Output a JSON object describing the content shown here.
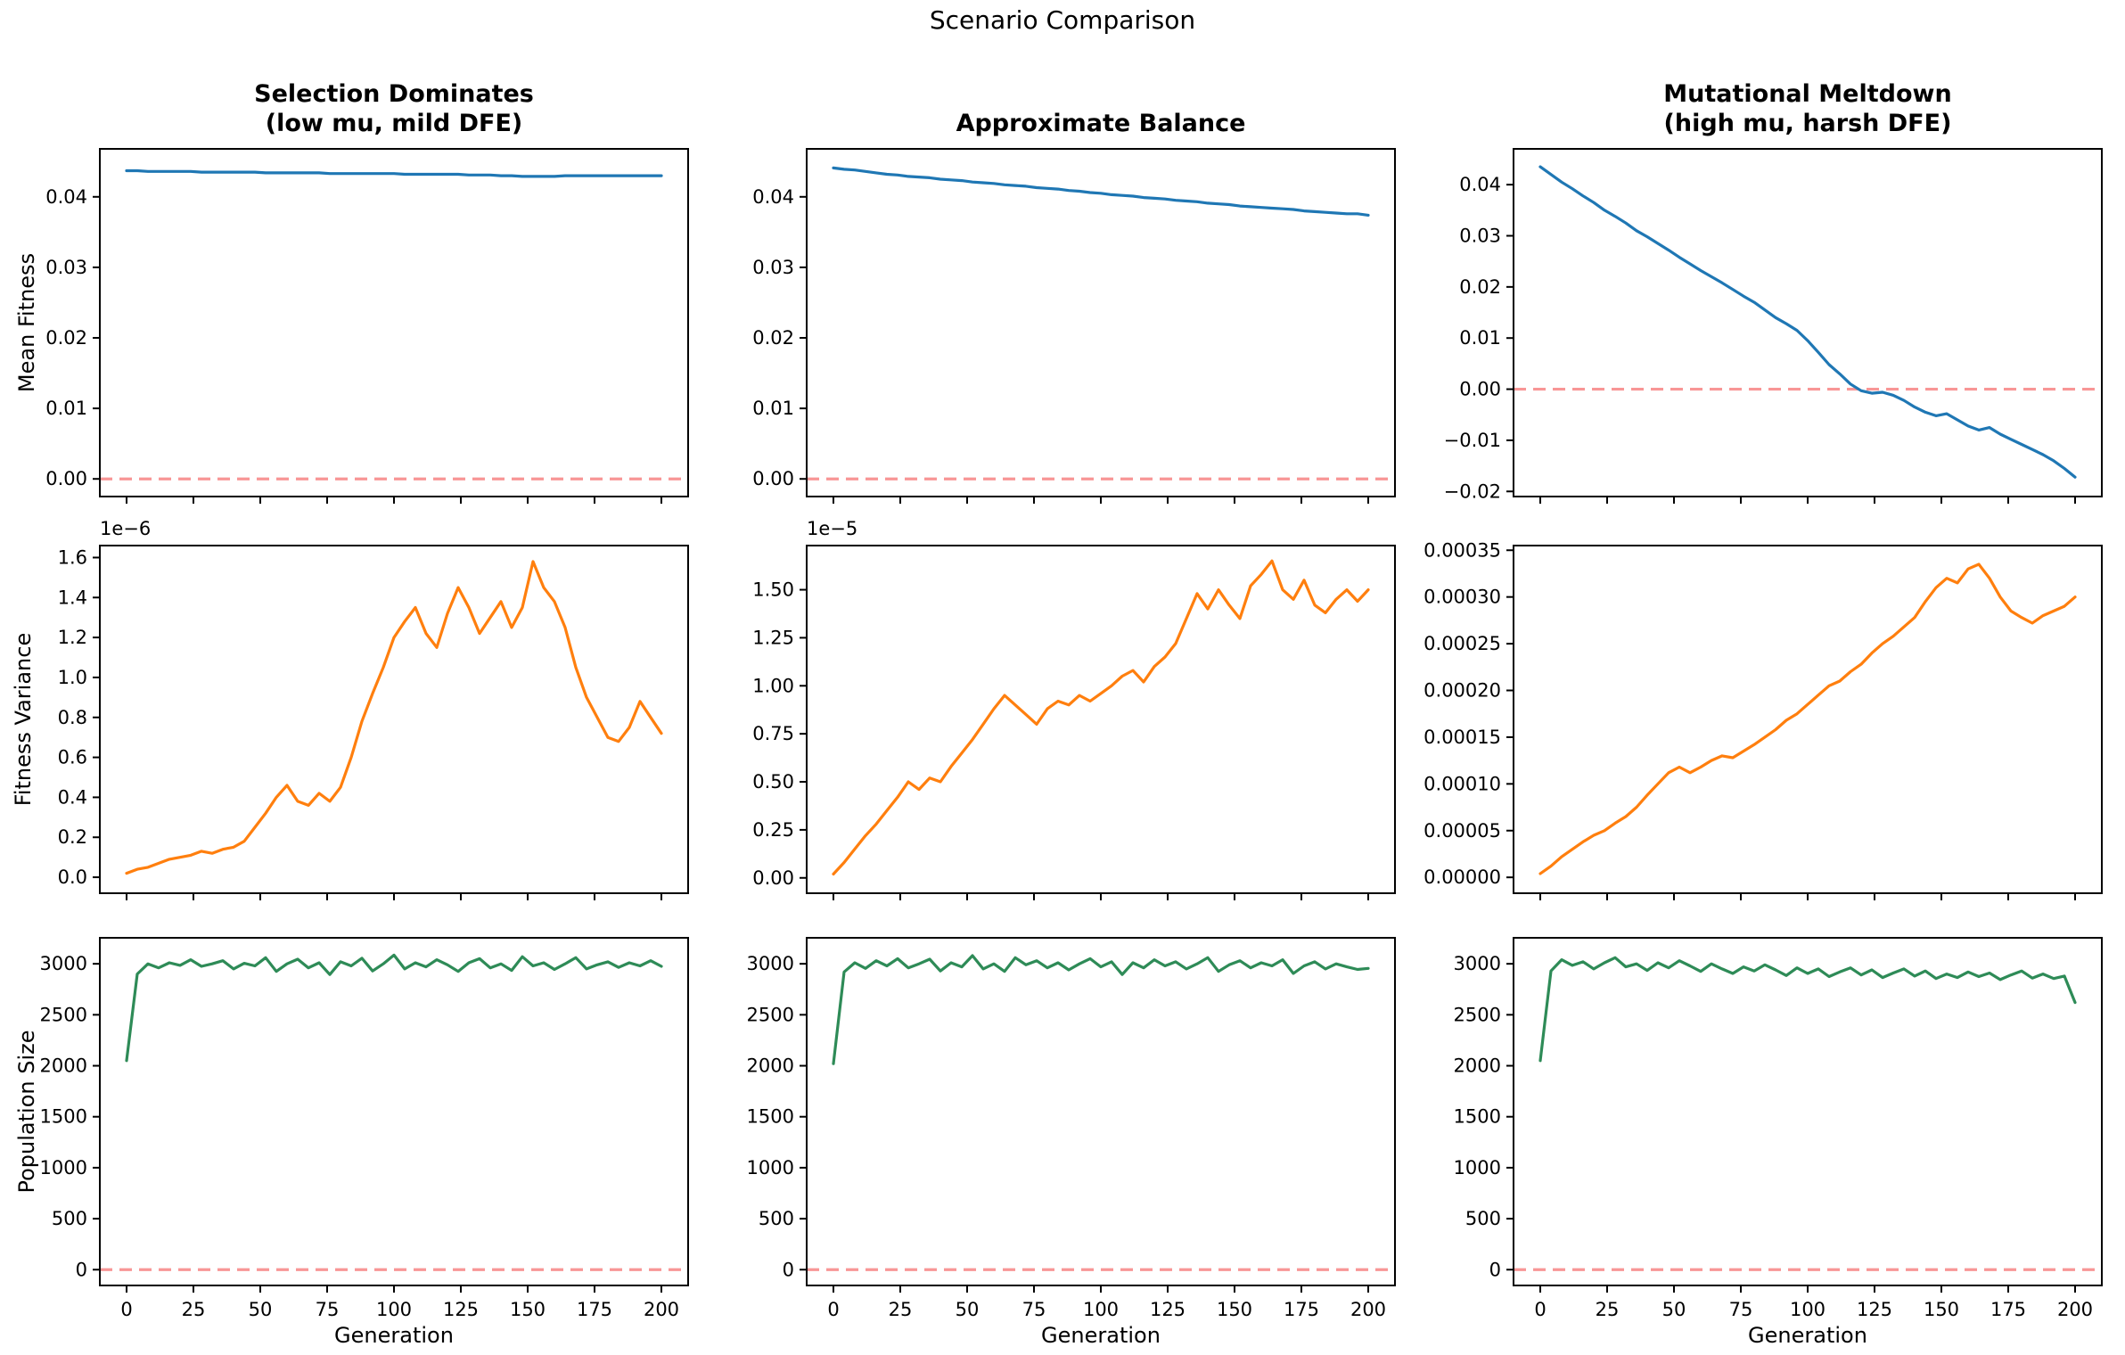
{
  "colors": {
    "blue": "#1f77b4",
    "orange": "#ff7f0e",
    "green": "#2e8b57",
    "zero_line": "#f89696",
    "spine": "#000000",
    "text": "#000000"
  },
  "chart_data": {
    "type": "line",
    "suptitle": "Scenario Comparison",
    "xlabel": "Generation",
    "grid": false,
    "columns": [
      {
        "title": "Selection Dominates\n(low mu, mild DFE)"
      },
      {
        "title": "Approximate Balance"
      },
      {
        "title": "Mutational Meltdown\n(high mu, harsh DFE)"
      }
    ],
    "rows": [
      {
        "ylabel": "Mean Fitness"
      },
      {
        "ylabel": "Fitness Variance"
      },
      {
        "ylabel": "Population Size"
      }
    ],
    "xlim": [
      -10,
      210
    ],
    "xticks": [
      0,
      25,
      50,
      75,
      100,
      125,
      150,
      175,
      200
    ],
    "xtick_labels": [
      "0",
      "25",
      "50",
      "75",
      "100",
      "125",
      "150",
      "175",
      "200"
    ],
    "x": [
      0,
      4,
      8,
      12,
      16,
      20,
      24,
      28,
      32,
      36,
      40,
      44,
      48,
      52,
      56,
      60,
      64,
      68,
      72,
      76,
      80,
      84,
      88,
      92,
      96,
      100,
      104,
      108,
      112,
      116,
      120,
      124,
      128,
      132,
      136,
      140,
      144,
      148,
      152,
      156,
      160,
      164,
      168,
      172,
      176,
      180,
      184,
      188,
      192,
      196,
      200
    ],
    "panels": [
      {
        "id": "r0c0",
        "series_name": "mean-fitness-selection",
        "color": "blue",
        "ylim": [
          -0.0025,
          0.0468
        ],
        "yticks": [
          0.0,
          0.01,
          0.02,
          0.03,
          0.04
        ],
        "ytick_labels": [
          "0.00",
          "0.01",
          "0.02",
          "0.03",
          "0.04"
        ],
        "offset_label": "",
        "zero_line": true,
        "show_xlabels": false,
        "y": [
          0.0437,
          0.0437,
          0.0436,
          0.0436,
          0.0436,
          0.0436,
          0.0436,
          0.0435,
          0.0435,
          0.0435,
          0.0435,
          0.0435,
          0.0435,
          0.0434,
          0.0434,
          0.0434,
          0.0434,
          0.0434,
          0.0434,
          0.0433,
          0.0433,
          0.0433,
          0.0433,
          0.0433,
          0.0433,
          0.0433,
          0.0432,
          0.0432,
          0.0432,
          0.0432,
          0.0432,
          0.0432,
          0.0431,
          0.0431,
          0.0431,
          0.043,
          0.043,
          0.0429,
          0.0429,
          0.0429,
          0.0429,
          0.043,
          0.043,
          0.043,
          0.043,
          0.043,
          0.043,
          0.043,
          0.043,
          0.043,
          0.043
        ]
      },
      {
        "id": "r0c1",
        "series_name": "mean-fitness-balance",
        "color": "blue",
        "ylim": [
          -0.0025,
          0.0468
        ],
        "yticks": [
          0.0,
          0.01,
          0.02,
          0.03,
          0.04
        ],
        "ytick_labels": [
          "0.00",
          "0.01",
          "0.02",
          "0.03",
          "0.04"
        ],
        "offset_label": "",
        "zero_line": true,
        "show_xlabels": false,
        "y": [
          0.0441,
          0.0439,
          0.0438,
          0.0436,
          0.0434,
          0.0432,
          0.0431,
          0.0429,
          0.0428,
          0.0427,
          0.0425,
          0.0424,
          0.0423,
          0.0421,
          0.042,
          0.0419,
          0.0417,
          0.0416,
          0.0415,
          0.0413,
          0.0412,
          0.0411,
          0.0409,
          0.0408,
          0.0406,
          0.0405,
          0.0403,
          0.0402,
          0.0401,
          0.0399,
          0.0398,
          0.0397,
          0.0395,
          0.0394,
          0.0393,
          0.0391,
          0.039,
          0.0389,
          0.0387,
          0.0386,
          0.0385,
          0.0384,
          0.0383,
          0.0382,
          0.038,
          0.0379,
          0.0378,
          0.0377,
          0.0376,
          0.0376,
          0.0374
        ]
      },
      {
        "id": "r0c2",
        "series_name": "mean-fitness-meltdown",
        "color": "blue",
        "ylim": [
          -0.021,
          0.047
        ],
        "yticks": [
          -0.02,
          -0.01,
          0.0,
          0.01,
          0.02,
          0.03,
          0.04
        ],
        "ytick_labels": [
          "−0.02",
          "−0.01",
          "0.00",
          "0.01",
          "0.02",
          "0.03",
          "0.04"
        ],
        "offset_label": "",
        "zero_line": true,
        "show_xlabels": false,
        "y": [
          0.0435,
          0.042,
          0.0405,
          0.0392,
          0.0378,
          0.0365,
          0.035,
          0.0338,
          0.0325,
          0.031,
          0.0298,
          0.0285,
          0.0272,
          0.0258,
          0.0245,
          0.0232,
          0.022,
          0.0208,
          0.0195,
          0.0182,
          0.017,
          0.0155,
          0.014,
          0.0128,
          0.0115,
          0.0095,
          0.0072,
          0.0048,
          0.003,
          0.001,
          -0.0003,
          -0.0008,
          -0.0006,
          -0.0012,
          -0.0022,
          -0.0035,
          -0.0045,
          -0.0052,
          -0.0048,
          -0.006,
          -0.0072,
          -0.008,
          -0.0075,
          -0.0088,
          -0.0098,
          -0.0108,
          -0.0118,
          -0.0128,
          -0.014,
          -0.0155,
          -0.0172
        ]
      },
      {
        "id": "r1c0",
        "series_name": "fitness-variance-selection",
        "color": "orange",
        "ylim": [
          -0.08,
          1.66
        ],
        "yticks": [
          0.0,
          0.2,
          0.4,
          0.6,
          0.8,
          1.0,
          1.2,
          1.4,
          1.6
        ],
        "ytick_labels": [
          "0.0",
          "0.2",
          "0.4",
          "0.6",
          "0.8",
          "1.0",
          "1.2",
          "1.4",
          "1.6"
        ],
        "offset_label": "1e−6",
        "zero_line": false,
        "show_xlabels": false,
        "y": [
          0.02,
          0.04,
          0.05,
          0.07,
          0.09,
          0.1,
          0.11,
          0.13,
          0.12,
          0.14,
          0.15,
          0.18,
          0.25,
          0.32,
          0.4,
          0.46,
          0.38,
          0.36,
          0.42,
          0.38,
          0.45,
          0.6,
          0.78,
          0.92,
          1.05,
          1.2,
          1.28,
          1.35,
          1.22,
          1.15,
          1.32,
          1.45,
          1.35,
          1.22,
          1.3,
          1.38,
          1.25,
          1.35,
          1.58,
          1.45,
          1.38,
          1.25,
          1.05,
          0.9,
          0.8,
          0.7,
          0.68,
          0.75,
          0.88,
          0.8,
          0.72
        ]
      },
      {
        "id": "r1c1",
        "series_name": "fitness-variance-balance",
        "color": "orange",
        "ylim": [
          -0.08,
          1.73
        ],
        "yticks": [
          0.0,
          0.25,
          0.5,
          0.75,
          1.0,
          1.25,
          1.5
        ],
        "ytick_labels": [
          "0.00",
          "0.25",
          "0.50",
          "0.75",
          "1.00",
          "1.25",
          "1.50"
        ],
        "offset_label": "1e−5",
        "zero_line": false,
        "show_xlabels": false,
        "y": [
          0.02,
          0.08,
          0.15,
          0.22,
          0.28,
          0.35,
          0.42,
          0.5,
          0.46,
          0.52,
          0.5,
          0.58,
          0.65,
          0.72,
          0.8,
          0.88,
          0.95,
          0.9,
          0.85,
          0.8,
          0.88,
          0.92,
          0.9,
          0.95,
          0.92,
          0.96,
          1.0,
          1.05,
          1.08,
          1.02,
          1.1,
          1.15,
          1.22,
          1.35,
          1.48,
          1.4,
          1.5,
          1.42,
          1.35,
          1.52,
          1.58,
          1.65,
          1.5,
          1.45,
          1.55,
          1.42,
          1.38,
          1.45,
          1.5,
          1.44,
          1.5
        ]
      },
      {
        "id": "r1c2",
        "series_name": "fitness-variance-meltdown",
        "color": "orange",
        "ylim": [
          -1.7e-05,
          0.000355
        ],
        "yticks": [
          0.0,
          5e-05,
          0.0001,
          0.00015,
          0.0002,
          0.00025,
          0.0003,
          0.00035
        ],
        "ytick_labels": [
          "0.00000",
          "0.00005",
          "0.00010",
          "0.00015",
          "0.00020",
          "0.00025",
          "0.00030",
          "0.00035"
        ],
        "offset_label": "",
        "zero_line": false,
        "show_xlabels": false,
        "y": [
          4e-06,
          1.2e-05,
          2.2e-05,
          3e-05,
          3.8e-05,
          4.5e-05,
          5e-05,
          5.8e-05,
          6.5e-05,
          7.5e-05,
          8.8e-05,
          0.0001,
          0.000112,
          0.000118,
          0.000112,
          0.000118,
          0.000125,
          0.00013,
          0.000128,
          0.000135,
          0.000142,
          0.00015,
          0.000158,
          0.000168,
          0.000175,
          0.000185,
          0.000195,
          0.000205,
          0.00021,
          0.00022,
          0.000228,
          0.00024,
          0.00025,
          0.000258,
          0.000268,
          0.000278,
          0.000295,
          0.00031,
          0.00032,
          0.000315,
          0.00033,
          0.000335,
          0.00032,
          0.0003,
          0.000285,
          0.000278,
          0.000272,
          0.00028,
          0.000285,
          0.00029,
          0.0003
        ]
      },
      {
        "id": "r2c0",
        "series_name": "population-size-selection",
        "color": "green",
        "ylim": [
          -155,
          3255
        ],
        "yticks": [
          0,
          500,
          1000,
          1500,
          2000,
          2500,
          3000
        ],
        "ytick_labels": [
          "0",
          "500",
          "1000",
          "1500",
          "2000",
          "2500",
          "3000"
        ],
        "offset_label": "",
        "zero_line": true,
        "show_xlabels": true,
        "y": [
          2050,
          2900,
          3000,
          2960,
          3010,
          2985,
          3040,
          2975,
          3000,
          3030,
          2950,
          3005,
          2980,
          3060,
          2925,
          3000,
          3045,
          2960,
          3010,
          2895,
          3020,
          2980,
          3055,
          2930,
          3000,
          3085,
          2950,
          3010,
          2970,
          3040,
          2990,
          2925,
          3010,
          3050,
          2960,
          3000,
          2935,
          3070,
          2980,
          3010,
          2945,
          3000,
          3060,
          2950,
          2990,
          3020,
          2965,
          3010,
          2980,
          3030,
          2975
        ]
      },
      {
        "id": "r2c1",
        "series_name": "population-size-balance",
        "color": "green",
        "ylim": [
          -155,
          3255
        ],
        "yticks": [
          0,
          500,
          1000,
          1500,
          2000,
          2500,
          3000
        ],
        "ytick_labels": [
          "0",
          "500",
          "1000",
          "1500",
          "2000",
          "2500",
          "3000"
        ],
        "offset_label": "",
        "zero_line": true,
        "show_xlabels": true,
        "y": [
          2020,
          2920,
          3010,
          2955,
          3030,
          2980,
          3050,
          2960,
          3000,
          3045,
          2930,
          3010,
          2970,
          3080,
          2950,
          3000,
          2925,
          3060,
          2990,
          3030,
          2960,
          3010,
          2940,
          3000,
          3050,
          2970,
          3020,
          2895,
          3010,
          2960,
          3040,
          2980,
          3020,
          2950,
          3000,
          3060,
          2925,
          2990,
          3030,
          2960,
          3010,
          2980,
          3040,
          2905,
          2980,
          3020,
          2950,
          3000,
          2970,
          2945,
          2955
        ]
      },
      {
        "id": "r2c2",
        "series_name": "population-size-meltdown",
        "color": "green",
        "ylim": [
          -155,
          3255
        ],
        "yticks": [
          0,
          500,
          1000,
          1500,
          2000,
          2500,
          3000
        ],
        "ytick_labels": [
          "0",
          "500",
          "1000",
          "1500",
          "2000",
          "2500",
          "3000"
        ],
        "offset_label": "",
        "zero_line": true,
        "show_xlabels": true,
        "y": [
          2050,
          2930,
          3040,
          2985,
          3020,
          2950,
          3010,
          3060,
          2970,
          3000,
          2935,
          3010,
          2960,
          3030,
          2980,
          2925,
          3000,
          2950,
          2905,
          2970,
          2930,
          2990,
          2940,
          2885,
          2960,
          2905,
          2950,
          2875,
          2920,
          2960,
          2890,
          2940,
          2865,
          2910,
          2950,
          2880,
          2930,
          2855,
          2900,
          2865,
          2920,
          2875,
          2910,
          2845,
          2890,
          2930,
          2860,
          2900,
          2855,
          2880,
          2620
        ]
      }
    ]
  }
}
